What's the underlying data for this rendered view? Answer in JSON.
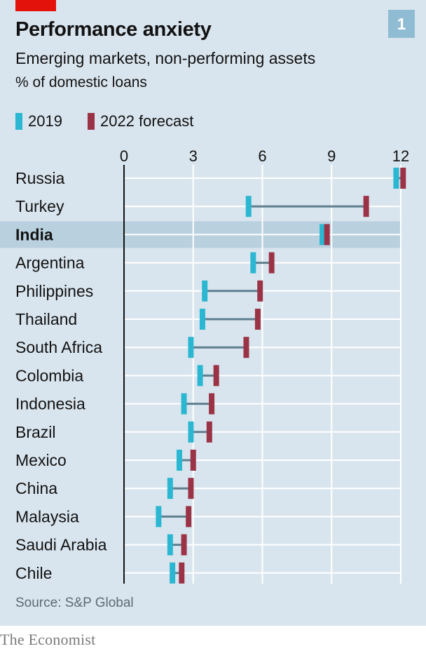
{
  "header": {
    "badge": "1"
  },
  "legend": {
    "items": [
      {
        "label": "2019",
        "color": "#2bb7d1"
      },
      {
        "label": "2022 forecast",
        "color": "#9b3346"
      }
    ]
  },
  "footer": {
    "source": "Source: S&P Global",
    "brand": "The Economist"
  },
  "colors": {
    "background": "#d9e5ee",
    "grid": "#ffffff",
    "axis": "#121212",
    "connector": "#5e7f8f",
    "highlight_band": "#b9d0de",
    "tag": "#e3120b",
    "badge": "#8fbcd2"
  },
  "chart_data": {
    "type": "dumbbell",
    "title": "Performance anxiety",
    "subtitle": "Emerging markets, non-performing assets",
    "unit": "% of domestic loans",
    "xlim": [
      0,
      12
    ],
    "x_ticks": [
      0,
      3,
      6,
      9,
      12
    ],
    "legend_position": "top-left",
    "highlight": "India",
    "categories": [
      "Russia",
      "Turkey",
      "India",
      "Argentina",
      "Philippines",
      "Thailand",
      "South Africa",
      "Colombia",
      "Indonesia",
      "Brazil",
      "Mexico",
      "China",
      "Malaysia",
      "Saudi Arabia",
      "Chile"
    ],
    "series": [
      {
        "name": "2019",
        "values": [
          11.8,
          5.4,
          8.6,
          5.6,
          3.5,
          3.4,
          2.9,
          3.3,
          2.6,
          2.9,
          2.4,
          2.0,
          1.5,
          2.0,
          2.1
        ]
      },
      {
        "name": "2022 forecast",
        "values": [
          12.1,
          10.5,
          8.8,
          6.4,
          5.9,
          5.8,
          5.3,
          4.0,
          3.8,
          3.7,
          3.0,
          2.9,
          2.8,
          2.6,
          2.5
        ]
      }
    ]
  }
}
